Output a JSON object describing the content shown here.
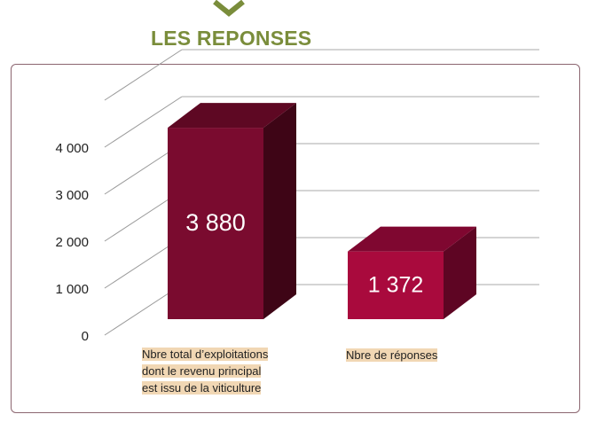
{
  "header": {
    "title": "LES REPONSES"
  },
  "colors": {
    "title": "#7a8d3b",
    "bar_1": "#7a0b2f",
    "bar_2": "#a90a3d",
    "label_highlight": "#f1d7b4",
    "frame": "#8c6670"
  },
  "chart_data": {
    "type": "bar",
    "categories": [
      "Nbre total d’exploitations dont le revenu principal est issu de la viticulture",
      "Nbre de réponses"
    ],
    "values": [
      3880,
      1372
    ],
    "value_labels": [
      "3 880",
      "1 372"
    ],
    "ylim": [
      0,
      5000
    ],
    "yticks": [
      0,
      1000,
      2000,
      3000,
      4000
    ],
    "ytick_labels": [
      "0",
      "1 000",
      "2 000",
      "3 000",
      "4 000"
    ],
    "grid": true,
    "style": "3d-bar"
  },
  "labels": {
    "cat1_line1": "Nbre total d’exploitations",
    "cat1_line2": "dont le revenu principal",
    "cat1_line3": "est issu de la viticulture",
    "cat2": "Nbre de réponses"
  }
}
